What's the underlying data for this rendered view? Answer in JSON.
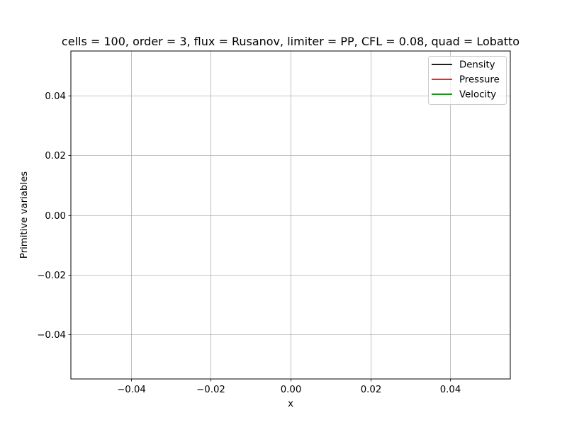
{
  "chart_data": {
    "type": "line",
    "title": "cells = 100, order = 3, flux = Rusanov, limiter = PP, CFL = 0.08, quad = Lobatto",
    "xlabel": "x",
    "ylabel": "Primitive variables",
    "xlim": [
      -0.055,
      0.055
    ],
    "ylim": [
      -0.055,
      0.055
    ],
    "xticks": [
      -0.04,
      -0.02,
      0.0,
      0.02,
      0.04
    ],
    "xtick_labels": [
      "−0.04",
      "−0.02",
      "0.00",
      "0.02",
      "0.04"
    ],
    "yticks": [
      -0.04,
      -0.02,
      0.0,
      0.02,
      0.04
    ],
    "ytick_labels": [
      "−0.04",
      "−0.02",
      "0.00",
      "0.02",
      "0.04"
    ],
    "grid": true,
    "legend_position": "top-right",
    "series": [
      {
        "name": "Density",
        "color": "#000000",
        "x": [],
        "y": []
      },
      {
        "name": "Pressure",
        "color": "#ff0000",
        "x": [],
        "y": []
      },
      {
        "name": "Velocity",
        "color": "#008000",
        "x": [],
        "y": []
      }
    ]
  }
}
